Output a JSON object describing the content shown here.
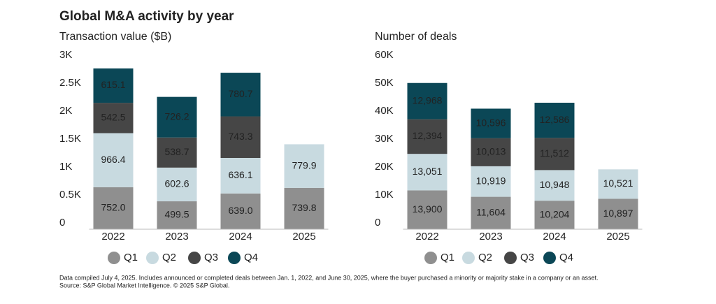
{
  "title": "Global M&A activity by year",
  "notes": [
    "Data compiled July 4, 2025. Includes announced or completed deals between Jan. 1, 2022, and June 30, 2025, where the buyer purchased a minority or majority stake in a company or an asset.",
    "Source: S&P Global Market Intelligence. © 2025 S&P Global."
  ],
  "chart_data": [
    {
      "type": "stacked_bar",
      "title": "Transaction value ($B)",
      "categories": [
        "2022",
        "2023",
        "2024",
        "2025"
      ],
      "ylim": [
        0,
        3000
      ],
      "yticks": [
        0,
        {
          "value": 500,
          "label": "0.5K"
        },
        {
          "value": 1000,
          "label": "1K"
        },
        {
          "value": 1500,
          "label": "1.5K"
        },
        {
          "value": 2000,
          "label": "2K"
        },
        {
          "value": 2500,
          "label": "2.5K"
        },
        {
          "value": 3000,
          "label": "3K"
        }
      ],
      "series": [
        {
          "name": "Q1",
          "color": "#8f8f8f",
          "values": [
            752.0,
            499.5,
            639.0,
            739.8
          ],
          "value_labels": [
            "752.0",
            "499.5",
            "639.0",
            "739.8"
          ]
        },
        {
          "name": "Q2",
          "color": "#c8dae0",
          "values": [
            966.4,
            602.6,
            636.1,
            779.9
          ],
          "value_labels": [
            "966.4",
            "602.6",
            "636.1",
            "779.9"
          ]
        },
        {
          "name": "Q3",
          "color": "#464646",
          "values": [
            542.5,
            538.7,
            743.3,
            null
          ],
          "value_labels": [
            "542.5",
            "538.7",
            "743.3",
            null
          ]
        },
        {
          "name": "Q4",
          "color": "#0b4756",
          "values": [
            615.1,
            726.2,
            780.7,
            null
          ],
          "value_labels": [
            "615.1",
            "726.2",
            "780.7",
            null
          ]
        }
      ]
    },
    {
      "type": "stacked_bar",
      "title": "Number of deals",
      "categories": [
        "2022",
        "2023",
        "2024",
        "2025"
      ],
      "ylim": [
        0,
        60000
      ],
      "yticks": [
        0,
        {
          "value": 10000,
          "label": "10K"
        },
        {
          "value": 20000,
          "label": "20K"
        },
        {
          "value": 30000,
          "label": "30K"
        },
        {
          "value": 40000,
          "label": "40K"
        },
        {
          "value": 50000,
          "label": "50K"
        },
        {
          "value": 60000,
          "label": "60K"
        }
      ],
      "series": [
        {
          "name": "Q1",
          "color": "#8f8f8f",
          "values": [
            13900,
            11604,
            10204,
            10897
          ],
          "value_labels": [
            "13,900",
            "11,604",
            "10,204",
            "10,897"
          ]
        },
        {
          "name": "Q2",
          "color": "#c8dae0",
          "values": [
            13051,
            10919,
            10948,
            10521
          ],
          "value_labels": [
            "13,051",
            "10,919",
            "10,948",
            "10,521"
          ]
        },
        {
          "name": "Q3",
          "color": "#464646",
          "values": [
            12394,
            10013,
            11512,
            null
          ],
          "value_labels": [
            "12,394",
            "10,013",
            "11,512",
            null
          ]
        },
        {
          "name": "Q4",
          "color": "#0b4756",
          "values": [
            12968,
            10596,
            12586,
            null
          ],
          "value_labels": [
            "12,968",
            "10,596",
            "12,586",
            null
          ]
        }
      ]
    }
  ]
}
